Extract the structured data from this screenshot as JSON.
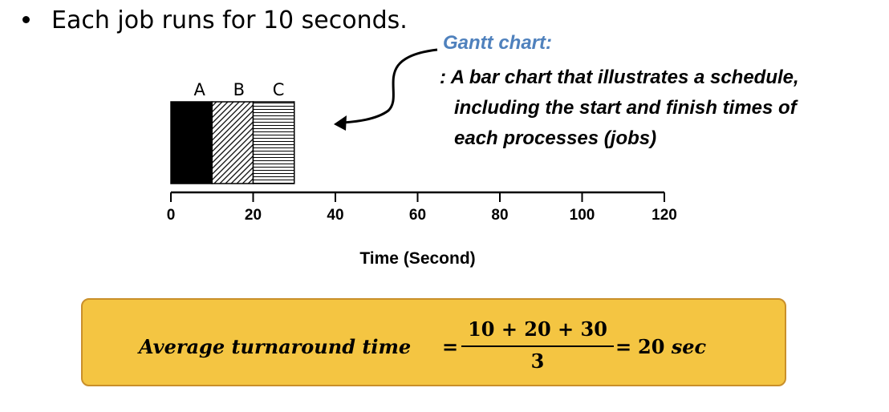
{
  "bullet": {
    "text": "Each job runs for 10 seconds."
  },
  "callout": {
    "title": "Gantt chart:",
    "lines": [
      ": A bar chart that illustrates a schedule,",
      "including the start and finish times of",
      "each processes (jobs)"
    ]
  },
  "chart_data": {
    "type": "bar",
    "orientation": "horizontal-gantt",
    "xlabel": "Time (Second)",
    "ylabel": "",
    "xlim": [
      0,
      120
    ],
    "xticks": [
      0,
      20,
      40,
      60,
      80,
      100,
      120
    ],
    "grid": false,
    "legend": "none",
    "series": [
      {
        "name": "A",
        "start": 0,
        "end": 10,
        "pattern": "solid-black"
      },
      {
        "name": "B",
        "start": 10,
        "end": 20,
        "pattern": "diagonal-hatch"
      },
      {
        "name": "C",
        "start": 20,
        "end": 30,
        "pattern": "horizontal-lines"
      }
    ]
  },
  "formula": {
    "label": "Average turnaround time",
    "eq1": "=",
    "numerator": "10 + 20 + 30",
    "denominator": "3",
    "eq2": "=",
    "result": "20",
    "unit": "sec"
  },
  "colors": {
    "callout_title": "#4f81bd",
    "box_fill": "#f4c542",
    "box_border": "#c98f2a"
  }
}
